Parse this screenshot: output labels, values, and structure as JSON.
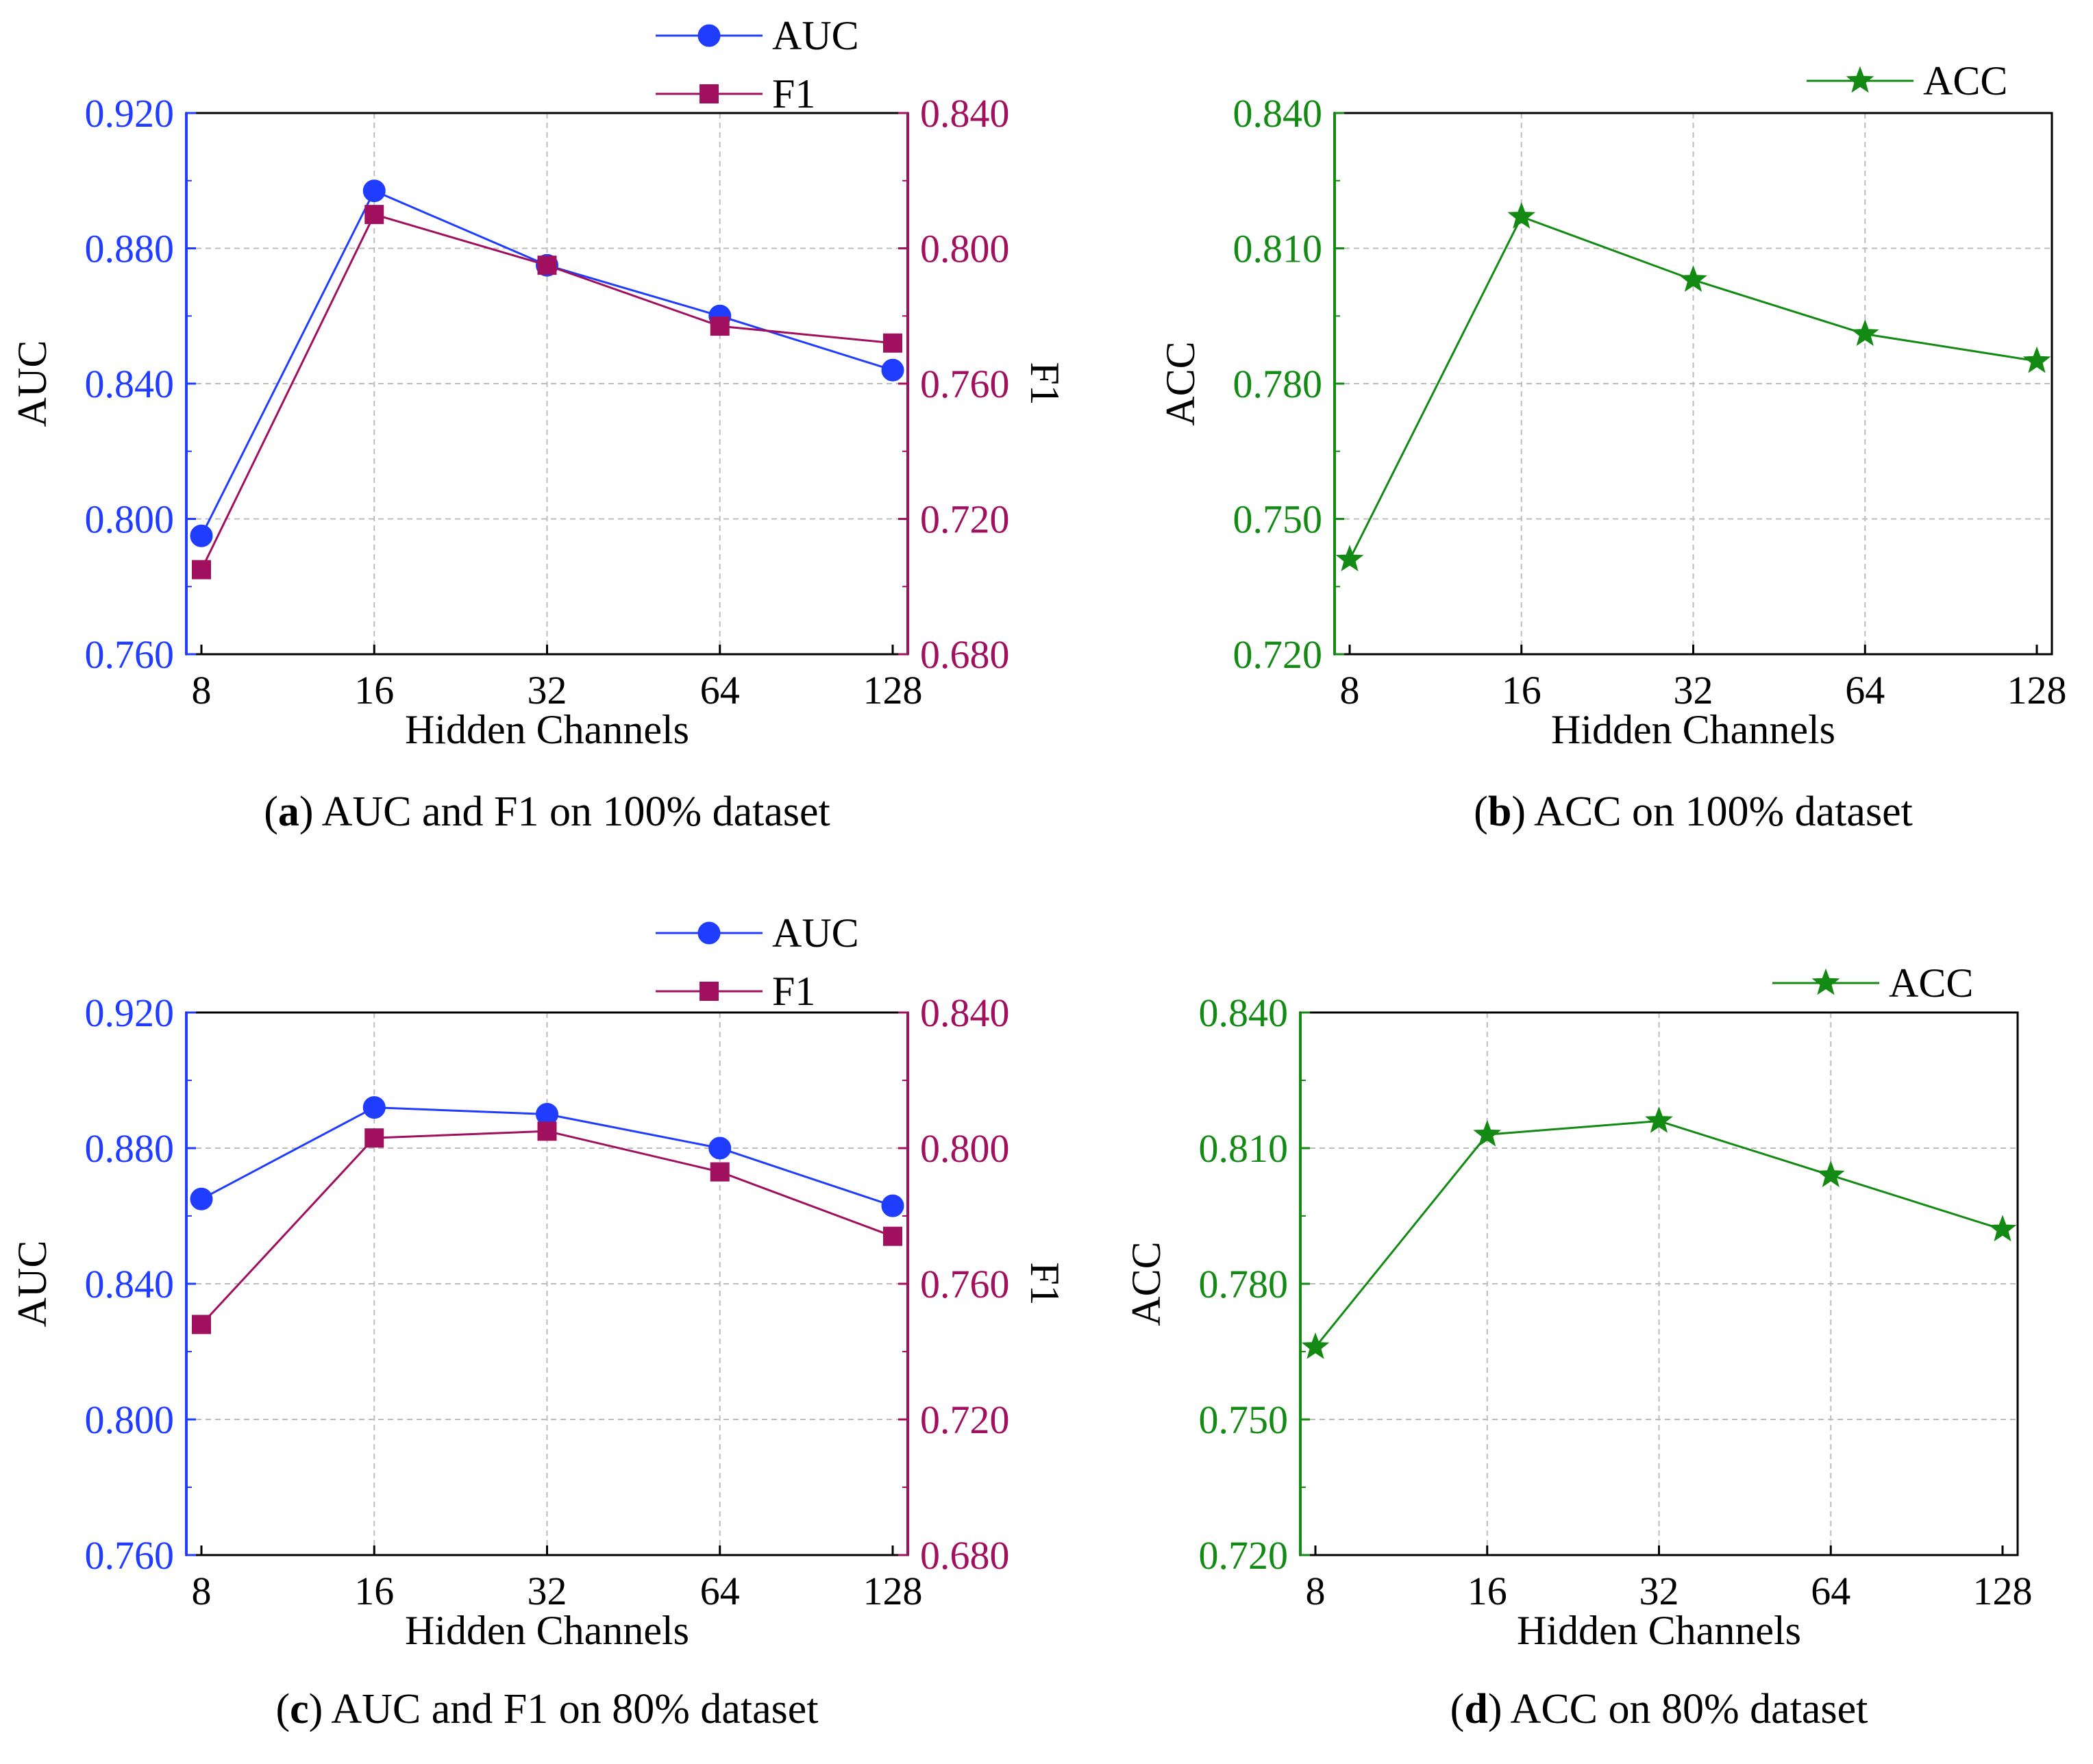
{
  "colors": {
    "auc": "#1f3cff",
    "f1": "#a0105e",
    "acc": "#138a13",
    "axis": "#000000"
  },
  "chart_data": [
    {
      "id": "a",
      "type": "line",
      "caption_letter": "a",
      "caption_text": "AUC and F1 on 100% dataset",
      "xlabel": "Hidden Channels",
      "ylabel_left": "AUC",
      "ylabel_right": "F1",
      "categories": [
        "8",
        "16",
        "32",
        "64",
        "128"
      ],
      "left_ylim": [
        0.76,
        0.92
      ],
      "left_ticks": [
        "0.760",
        "0.800",
        "0.840",
        "0.880",
        "0.920"
      ],
      "right_ylim": [
        0.68,
        0.84
      ],
      "right_ticks": [
        "0.680",
        "0.720",
        "0.760",
        "0.800",
        "0.840"
      ],
      "series": [
        {
          "name": "AUC",
          "axis": "left",
          "marker": "circle",
          "values": [
            0.795,
            0.897,
            0.875,
            0.86,
            0.844
          ]
        },
        {
          "name": "F1",
          "axis": "right",
          "marker": "square",
          "values": [
            0.705,
            0.81,
            0.795,
            0.777,
            0.772
          ]
        }
      ]
    },
    {
      "id": "b",
      "type": "line",
      "caption_letter": "b",
      "caption_text": "ACC on 100% dataset",
      "xlabel": "Hidden Channels",
      "ylabel_left": "ACC",
      "categories": [
        "8",
        "16",
        "32",
        "64",
        "128"
      ],
      "left_ylim": [
        0.72,
        0.84
      ],
      "left_ticks": [
        "0.720",
        "0.750",
        "0.780",
        "0.810",
        "0.840"
      ],
      "series": [
        {
          "name": "ACC",
          "axis": "left",
          "marker": "star",
          "values": [
            0.741,
            0.817,
            0.803,
            0.791,
            0.785
          ]
        }
      ]
    },
    {
      "id": "c",
      "type": "line",
      "caption_letter": "c",
      "caption_text": "AUC and F1 on 80% dataset",
      "xlabel": "Hidden Channels",
      "ylabel_left": "AUC",
      "ylabel_right": "F1",
      "categories": [
        "8",
        "16",
        "32",
        "64",
        "128"
      ],
      "left_ylim": [
        0.76,
        0.92
      ],
      "left_ticks": [
        "0.760",
        "0.800",
        "0.840",
        "0.880",
        "0.920"
      ],
      "right_ylim": [
        0.68,
        0.84
      ],
      "right_ticks": [
        "0.680",
        "0.720",
        "0.760",
        "0.800",
        "0.840"
      ],
      "series": [
        {
          "name": "AUC",
          "axis": "left",
          "marker": "circle",
          "values": [
            0.865,
            0.892,
            0.89,
            0.88,
            0.863
          ]
        },
        {
          "name": "F1",
          "axis": "right",
          "marker": "square",
          "values": [
            0.748,
            0.803,
            0.805,
            0.793,
            0.774
          ]
        }
      ]
    },
    {
      "id": "d",
      "type": "line",
      "caption_letter": "d",
      "caption_text": "ACC on 80% dataset",
      "xlabel": "Hidden Channels",
      "ylabel_left": "ACC",
      "categories": [
        "8",
        "16",
        "32",
        "64",
        "128"
      ],
      "left_ylim": [
        0.72,
        0.84
      ],
      "left_ticks": [
        "0.720",
        "0.750",
        "0.780",
        "0.810",
        "0.840"
      ],
      "series": [
        {
          "name": "ACC",
          "axis": "left",
          "marker": "star",
          "values": [
            0.766,
            0.813,
            0.816,
            0.804,
            0.792
          ]
        }
      ]
    }
  ]
}
